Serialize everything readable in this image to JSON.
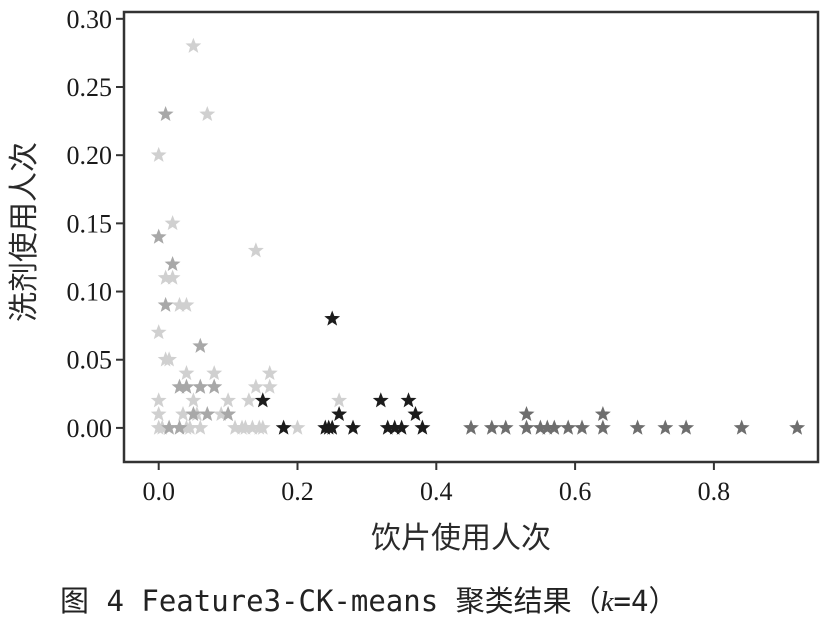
{
  "chart_data": {
    "type": "scatter",
    "title": "",
    "xlabel": "饮片使用人次",
    "ylabel": "洗剂使用人次",
    "xlim": [
      -0.05,
      0.95
    ],
    "ylim": [
      -0.025,
      0.305
    ],
    "xticks": [
      0.0,
      0.2,
      0.4,
      0.6,
      0.8
    ],
    "xtick_labels": [
      "0.0",
      "0.2",
      "0.4",
      "0.6",
      "0.8"
    ],
    "yticks": [
      0.0,
      0.05,
      0.1,
      0.15,
      0.2,
      0.25,
      0.3
    ],
    "ytick_labels": [
      "0.00",
      "0.05",
      "0.10",
      "0.15",
      "0.20",
      "0.25",
      "0.30"
    ],
    "grid": false,
    "marker": "star",
    "clusters": [
      {
        "color": "#d0d0d0",
        "points": [
          [
            0.0,
            0.2
          ],
          [
            0.0,
            0.07
          ],
          [
            0.0,
            0.02
          ],
          [
            0.0,
            0.01
          ],
          [
            0.0,
            0.0
          ],
          [
            0.005,
            0.0
          ],
          [
            0.01,
            0.11
          ],
          [
            0.01,
            0.05
          ],
          [
            0.015,
            0.05
          ],
          [
            0.02,
            0.15
          ],
          [
            0.02,
            0.11
          ],
          [
            0.03,
            0.09
          ],
          [
            0.04,
            0.09
          ],
          [
            0.04,
            0.04
          ],
          [
            0.035,
            0.01
          ],
          [
            0.04,
            0.0
          ],
          [
            0.045,
            0.0
          ],
          [
            0.05,
            0.28
          ],
          [
            0.05,
            0.02
          ],
          [
            0.055,
            0.01
          ],
          [
            0.06,
            0.03
          ],
          [
            0.06,
            0.0
          ],
          [
            0.07,
            0.23
          ],
          [
            0.08,
            0.04
          ],
          [
            0.08,
            0.03
          ],
          [
            0.09,
            0.01
          ],
          [
            0.1,
            0.02
          ],
          [
            0.1,
            0.01
          ],
          [
            0.11,
            0.0
          ],
          [
            0.12,
            0.0
          ],
          [
            0.125,
            0.0
          ],
          [
            0.13,
            0.02
          ],
          [
            0.135,
            0.0
          ],
          [
            0.14,
            0.13
          ],
          [
            0.14,
            0.03
          ],
          [
            0.145,
            0.0
          ],
          [
            0.15,
            0.0
          ],
          [
            0.16,
            0.04
          ],
          [
            0.16,
            0.03
          ],
          [
            0.2,
            0.0
          ],
          [
            0.26,
            0.02
          ]
        ]
      },
      {
        "color": "#a8a8a8",
        "points": [
          [
            0.0,
            0.14
          ],
          [
            0.01,
            0.23
          ],
          [
            0.01,
            0.09
          ],
          [
            0.02,
            0.12
          ],
          [
            0.015,
            0.0
          ],
          [
            0.03,
            0.03
          ],
          [
            0.04,
            0.03
          ],
          [
            0.03,
            0.0
          ],
          [
            0.05,
            0.01
          ],
          [
            0.06,
            0.06
          ],
          [
            0.06,
            0.03
          ],
          [
            0.07,
            0.01
          ],
          [
            0.08,
            0.03
          ],
          [
            0.1,
            0.01
          ]
        ]
      },
      {
        "color": "#1c1c1c",
        "points": [
          [
            0.15,
            0.02
          ],
          [
            0.18,
            0.0
          ],
          [
            0.24,
            0.0
          ],
          [
            0.245,
            0.0
          ],
          [
            0.25,
            0.08
          ],
          [
            0.25,
            0.0
          ],
          [
            0.26,
            0.01
          ],
          [
            0.28,
            0.0
          ],
          [
            0.32,
            0.02
          ],
          [
            0.33,
            0.0
          ],
          [
            0.34,
            0.0
          ],
          [
            0.35,
            0.0
          ],
          [
            0.36,
            0.02
          ],
          [
            0.37,
            0.01
          ],
          [
            0.38,
            0.0
          ]
        ]
      },
      {
        "color": "#6e6e6e",
        "points": [
          [
            0.45,
            0.0
          ],
          [
            0.48,
            0.0
          ],
          [
            0.5,
            0.0
          ],
          [
            0.53,
            0.01
          ],
          [
            0.53,
            0.0
          ],
          [
            0.55,
            0.0
          ],
          [
            0.56,
            0.0
          ],
          [
            0.57,
            0.0
          ],
          [
            0.59,
            0.0
          ],
          [
            0.61,
            0.0
          ],
          [
            0.64,
            0.01
          ],
          [
            0.64,
            0.0
          ],
          [
            0.69,
            0.0
          ],
          [
            0.73,
            0.0
          ],
          [
            0.76,
            0.0
          ],
          [
            0.84,
            0.0
          ],
          [
            0.92,
            0.0
          ]
        ]
      }
    ]
  },
  "caption": {
    "prefix": "图 4  Feature3-CK-means 聚类结果（",
    "k": "k",
    "suffix": "=4）"
  }
}
